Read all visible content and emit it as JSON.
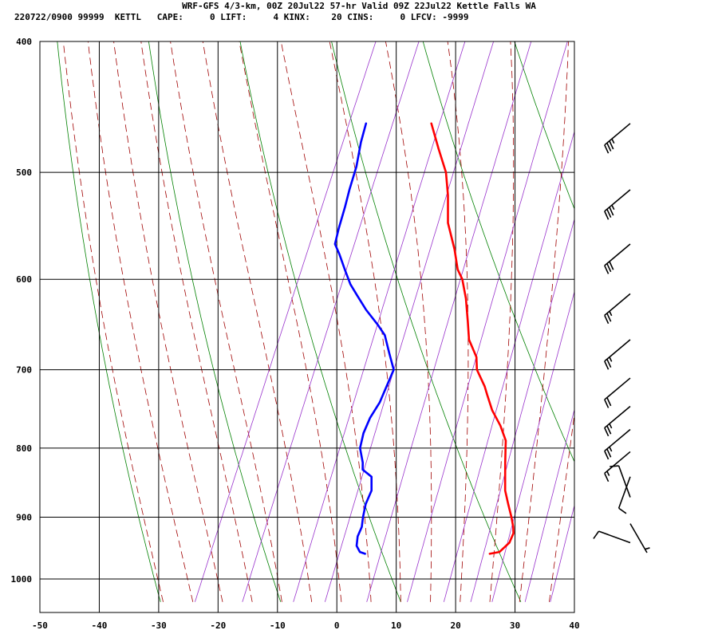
{
  "header": {
    "title": "WRF-GFS 4/3-km, 00Z 20Jul22 57-hr Valid 09Z 22Jul22 Kettle Falls WA",
    "subtitle": "220722/0900 99999  KETTL   CAPE:     0 LIFT:     4 KINX:    20 CINS:     0 LFCV: -9999"
  },
  "chart_data": {
    "type": "line",
    "diagram": "skew-t log-p",
    "xlim": [
      -50,
      40
    ],
    "ylim": [
      1040,
      400
    ],
    "y_scale": "log",
    "x_ticks": [
      -50,
      -40,
      -30,
      -20,
      -10,
      0,
      10,
      20,
      30,
      40
    ],
    "y_ticks": [
      400,
      500,
      600,
      700,
      800,
      900,
      1000
    ],
    "series": [
      {
        "color": "#ff0000",
        "points": [
          [
            -19.5,
            460
          ],
          [
            -16.5,
            480
          ],
          [
            -13.5,
            500
          ],
          [
            -11.5,
            520
          ],
          [
            -9.5,
            545
          ],
          [
            -6.5,
            570
          ],
          [
            -4.5,
            590
          ],
          [
            -3,
            600
          ],
          [
            -1,
            620
          ],
          [
            1,
            645
          ],
          [
            2.5,
            665
          ],
          [
            5,
            685
          ],
          [
            6,
            700
          ],
          [
            8.5,
            720
          ],
          [
            9.5,
            730
          ],
          [
            11.5,
            750
          ],
          [
            14,
            770
          ],
          [
            16,
            790
          ],
          [
            16.5,
            800
          ],
          [
            17.5,
            820
          ],
          [
            18.5,
            840
          ],
          [
            19.5,
            860
          ],
          [
            21,
            880
          ],
          [
            22.5,
            900
          ],
          [
            23.5,
            915
          ],
          [
            24,
            925
          ],
          [
            24,
            940
          ],
          [
            23,
            955
          ],
          [
            21.5,
            958
          ]
        ]
      },
      {
        "color": "#0000ff",
        "points": [
          [
            -30.5,
            460
          ],
          [
            -30,
            475
          ],
          [
            -29,
            495
          ],
          [
            -28.5,
            515
          ],
          [
            -28,
            530
          ],
          [
            -27.5,
            550
          ],
          [
            -27,
            565
          ],
          [
            -25.5,
            575
          ],
          [
            -23.5,
            590
          ],
          [
            -21.5,
            605
          ],
          [
            -19.5,
            617
          ],
          [
            -17,
            632
          ],
          [
            -14,
            648
          ],
          [
            -12,
            660
          ],
          [
            -10,
            680
          ],
          [
            -8,
            700
          ],
          [
            -8,
            720
          ],
          [
            -8,
            740
          ],
          [
            -8.5,
            760
          ],
          [
            -8.5,
            780
          ],
          [
            -8,
            800
          ],
          [
            -6.5,
            820
          ],
          [
            -6,
            830
          ],
          [
            -4,
            840
          ],
          [
            -3,
            860
          ],
          [
            -3,
            880
          ],
          [
            -2.5,
            900
          ],
          [
            -2,
            915
          ],
          [
            -2,
            930
          ],
          [
            -1.5,
            945
          ],
          [
            -0.5,
            955
          ],
          [
            0.5,
            958
          ]
        ]
      }
    ],
    "dry_adiabat_color": "#008000",
    "moist_adiabat_color": "#a00000",
    "mixing_ratio_color": "#9933cc",
    "wind_barbs": [
      {
        "p": 460,
        "dir": 230,
        "speed": 35
      },
      {
        "p": 515,
        "dir": 230,
        "speed": 35
      },
      {
        "p": 565,
        "dir": 230,
        "speed": 30
      },
      {
        "p": 615,
        "dir": 230,
        "speed": 25
      },
      {
        "p": 665,
        "dir": 230,
        "speed": 25
      },
      {
        "p": 710,
        "dir": 230,
        "speed": 20
      },
      {
        "p": 745,
        "dir": 230,
        "speed": 25
      },
      {
        "p": 775,
        "dir": 230,
        "speed": 25
      },
      {
        "p": 805,
        "dir": 230,
        "speed": 15
      },
      {
        "p": 840,
        "dir": 200,
        "speed": 10
      },
      {
        "p": 870,
        "dir": 340,
        "speed": 10
      },
      {
        "p": 910,
        "dir": 150,
        "speed": 5
      },
      {
        "p": 940,
        "dir": 290,
        "speed": 10
      }
    ]
  }
}
